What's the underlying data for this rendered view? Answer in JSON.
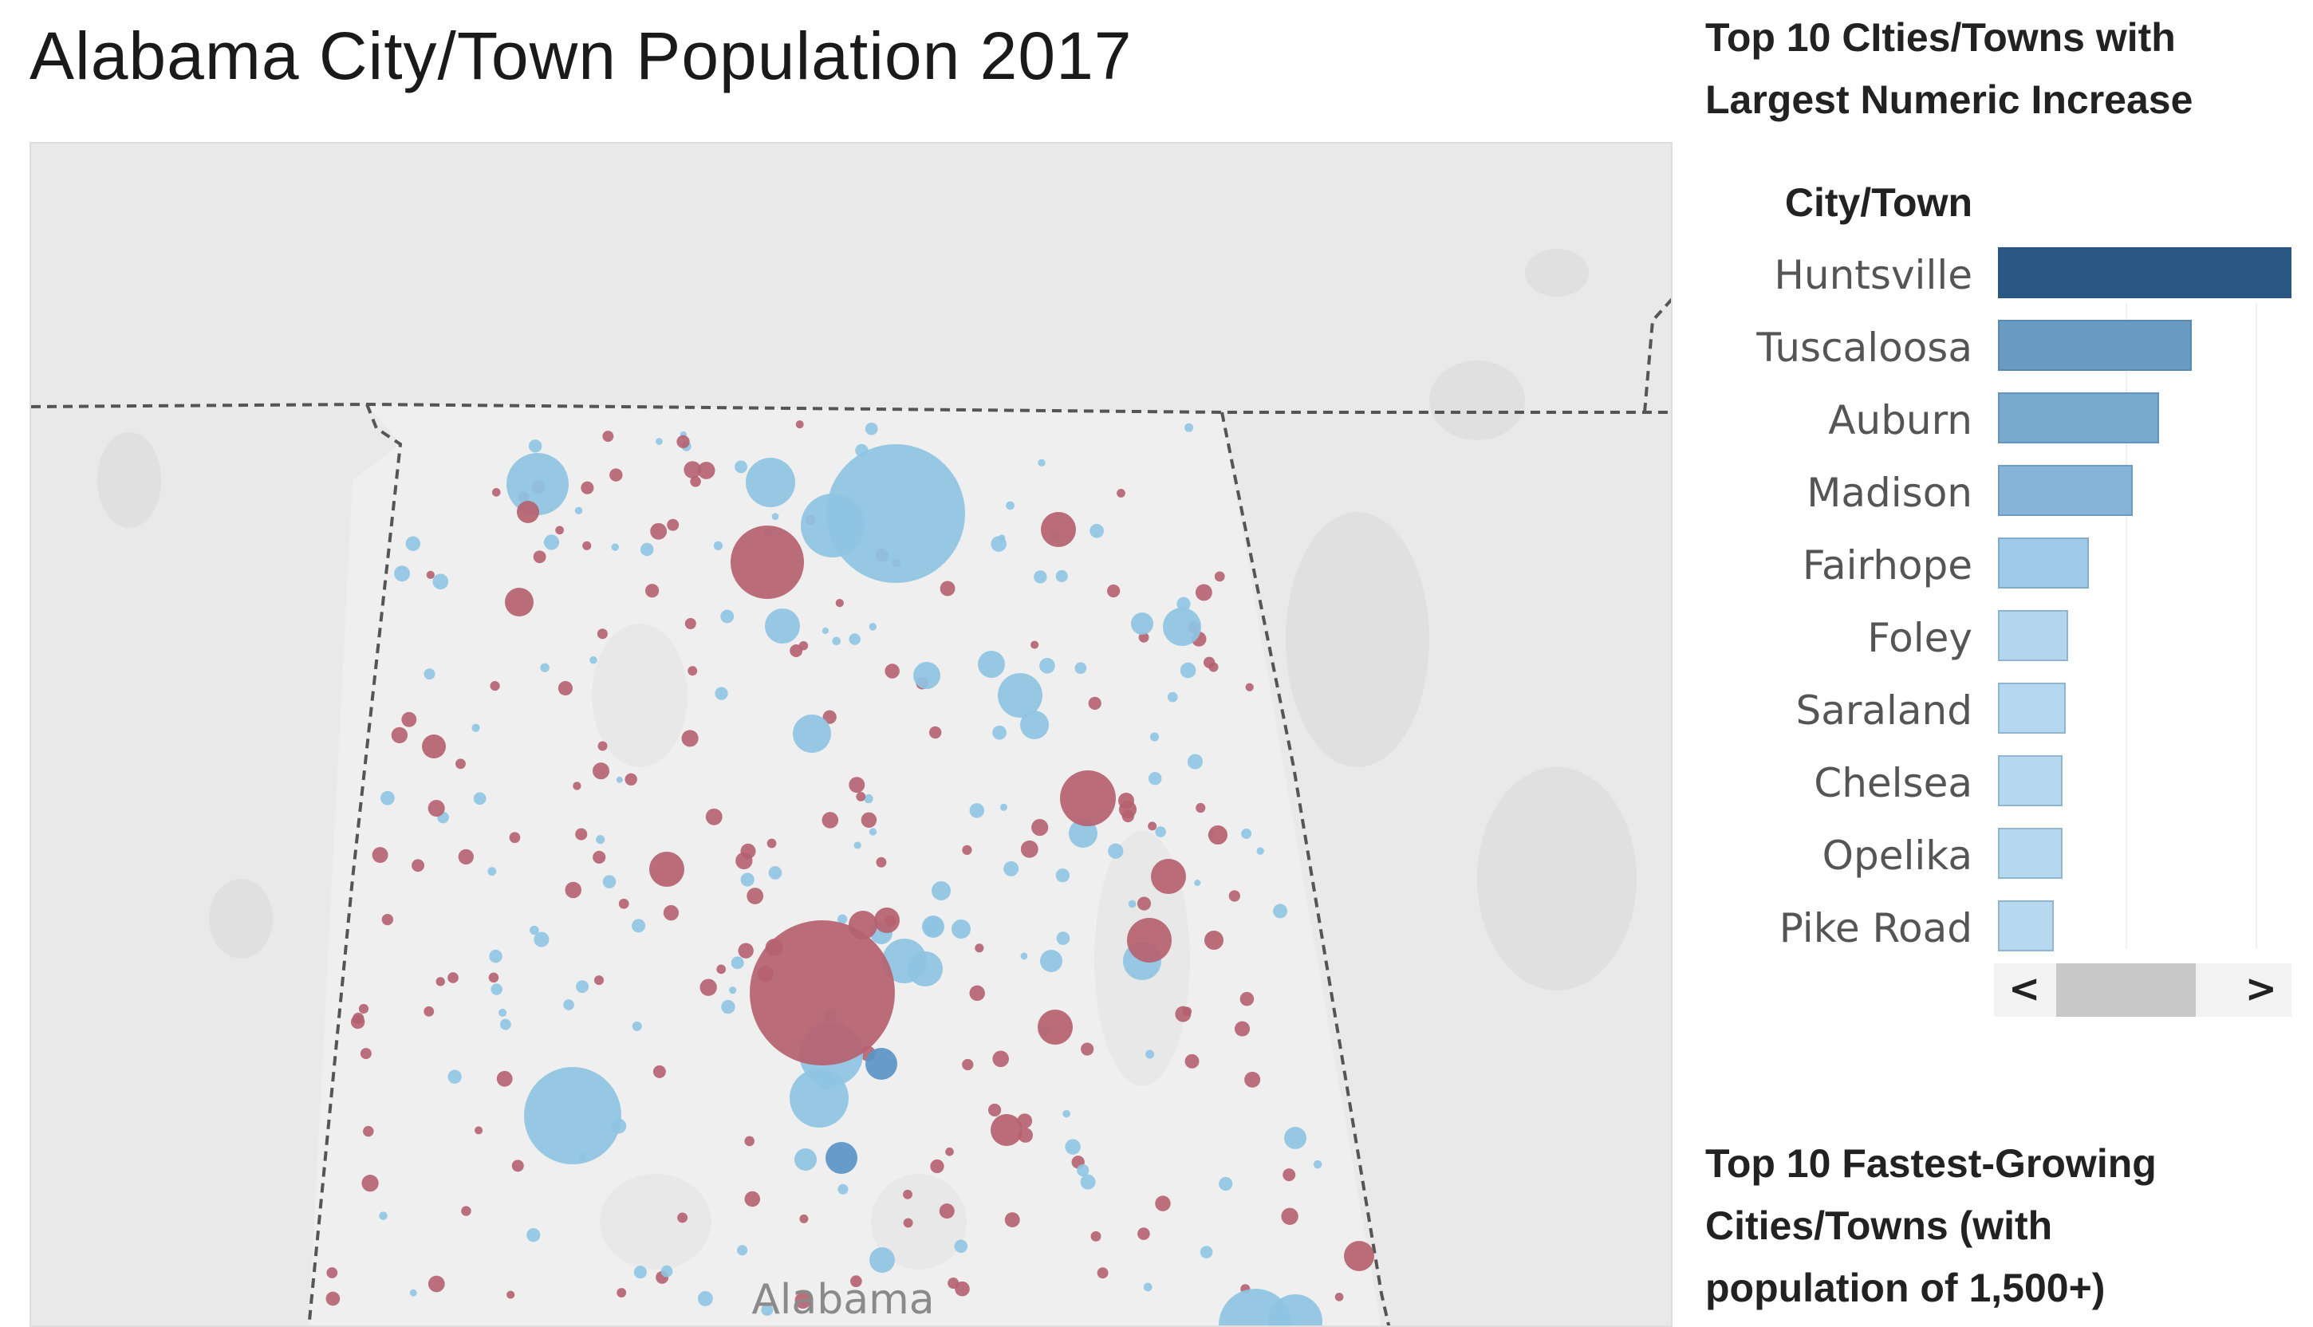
{
  "title": "Alabama City/Town Population 2017",
  "map": {
    "state_label": "Alabama",
    "colors": {
      "increase": "#8ec4e3",
      "increase_dark": "#5b95c7",
      "decrease": "#b5616f",
      "background": "#e9e9e9",
      "state_fill": "#efefef"
    }
  },
  "bar_panel": {
    "heading": "Top 10 CIties/Towns with Largest Numeric Increase",
    "heading_lines": [
      "Top 10 CIties/Towns with",
      "Largest Numeric Increase"
    ],
    "column_header": "City/Town",
    "scroll_left": "<",
    "scroll_right": ">"
  },
  "chart_data": {
    "type": "bar",
    "orientation": "horizontal",
    "title": "Top 10 CIties/Towns with Largest Numeric Increase",
    "categories": [
      "Huntsville",
      "Tuscaloosa",
      "Auburn",
      "Madison",
      "Fairhope",
      "Foley",
      "Saraland",
      "Chelsea",
      "Opelika",
      "Pike Road"
    ],
    "values_relative_to_max": [
      1.0,
      0.66,
      0.55,
      0.46,
      0.31,
      0.24,
      0.23,
      0.22,
      0.22,
      0.19
    ],
    "colors": [
      "#2a5783",
      "#6a9bc3",
      "#78a9cf",
      "#86b4d9",
      "#a0cbe8",
      "#b2d6ee",
      "#b4d8ef",
      "#b4d8ef",
      "#b4d8ef",
      "#b6d9f0"
    ],
    "grid": true
  },
  "second_panel": {
    "heading_lines": [
      "Top 10 Fastest-Growing",
      "Cities/Towns  (with",
      "population of 1,500+)"
    ]
  }
}
